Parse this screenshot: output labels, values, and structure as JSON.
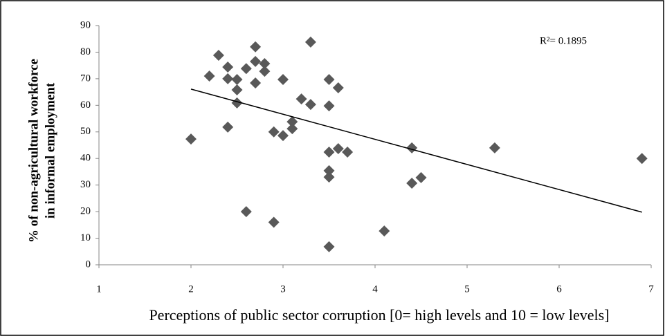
{
  "chart_data": {
    "type": "scatter",
    "x_label": "Perceptions of public sector corruption [0= high levels and 10 = low levels]",
    "y_label": [
      "% of non-agricultural workforce",
      "in informal employment"
    ],
    "annotation": "R²= 0.1895",
    "series": [
      {
        "color": "#595959",
        "x": [
          2.0,
          2.2,
          2.3,
          2.4,
          2.4,
          2.4,
          2.5,
          2.5,
          2.5,
          2.6,
          2.6,
          2.7,
          2.7,
          2.7,
          2.8,
          2.8,
          2.9,
          2.9,
          3.0,
          3.0,
          3.1,
          3.1,
          3.2,
          3.3,
          3.3,
          3.5,
          3.5,
          3.5,
          3.5,
          3.5,
          3.5,
          3.6,
          3.6,
          3.7,
          4.1,
          4.4,
          4.4,
          4.5,
          5.3,
          6.9
        ],
        "values": [
          47.3,
          71,
          78.8,
          74.4,
          70,
          51.8,
          69.7,
          65.8,
          60.9,
          73.8,
          20,
          82,
          76.5,
          68.4,
          75.7,
          72.8,
          50,
          16,
          69.7,
          48.6,
          53.8,
          51.2,
          62.4,
          83.8,
          60.3,
          69.7,
          59.8,
          42.4,
          35.4,
          33,
          6.8,
          66.6,
          43.7,
          42.4,
          12.7,
          44,
          30.7,
          32.8,
          44,
          40
        ]
      }
    ],
    "trendline": {
      "color": "#000000",
      "x": [
        2,
        6.9
      ],
      "values": [
        66.1,
        19.8
      ]
    },
    "xlim": [
      1,
      7
    ],
    "xticks": [
      1,
      2,
      3,
      4,
      5,
      6,
      7
    ],
    "ylim": [
      0,
      90
    ],
    "yticks": [
      0,
      10,
      20,
      30,
      40,
      50,
      60,
      70,
      80,
      90
    ],
    "grid": false
  }
}
